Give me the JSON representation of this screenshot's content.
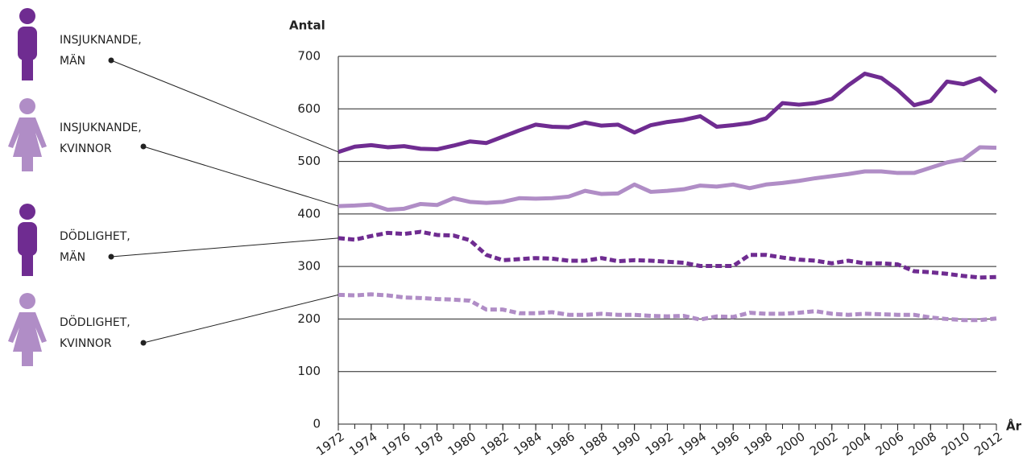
{
  "chart_data": {
    "type": "line",
    "y_label": "Antal",
    "x_label": "År",
    "x": [
      1972,
      1973,
      1974,
      1975,
      1976,
      1977,
      1978,
      1979,
      1980,
      1981,
      1982,
      1983,
      1984,
      1985,
      1986,
      1987,
      1988,
      1989,
      1990,
      1991,
      1992,
      1993,
      1994,
      1995,
      1996,
      1997,
      1998,
      1999,
      2000,
      2001,
      2002,
      2003,
      2004,
      2005,
      2006,
      2007,
      2008,
      2009,
      2010,
      2011,
      2012
    ],
    "xlim": [
      1972,
      2012
    ],
    "xticks": [
      1972,
      1974,
      1976,
      1978,
      1980,
      1982,
      1984,
      1986,
      1988,
      1990,
      1992,
      1994,
      1996,
      1998,
      2000,
      2002,
      2004,
      2006,
      2008,
      2010,
      2012
    ],
    "ylim": [
      0,
      700
    ],
    "yticks": [
      0,
      100,
      200,
      300,
      400,
      500,
      600,
      700
    ],
    "grid": true,
    "series": [
      {
        "name": [
          "INSJUKNANDE,",
          "MÄN"
        ],
        "color": "#6f2c91",
        "dashed": false,
        "values": [
          518,
          528,
          531,
          527,
          529,
          524,
          523,
          530,
          538,
          535,
          547,
          559,
          570,
          566,
          565,
          574,
          568,
          570,
          555,
          569,
          575,
          579,
          586,
          566,
          569,
          573,
          582,
          611,
          608,
          611,
          619,
          645,
          667,
          659,
          636,
          607,
          615,
          652,
          647,
          658,
          632
        ]
      },
      {
        "name": [
          "INSJUKNANDE,",
          "KVINNOR"
        ],
        "color": "#b08dc6",
        "dashed": false,
        "values": [
          415,
          416,
          418,
          408,
          410,
          419,
          417,
          430,
          423,
          421,
          423,
          430,
          429,
          430,
          433,
          444,
          438,
          439,
          456,
          442,
          444,
          447,
          454,
          452,
          456,
          449,
          456,
          459,
          463,
          468,
          472,
          476,
          481,
          481,
          478,
          478,
          488,
          498,
          504,
          527,
          526
        ]
      },
      {
        "name": [
          "DÖDLIGHET,",
          "MÄN"
        ],
        "color": "#6f2c91",
        "dashed": true,
        "values": [
          354,
          351,
          358,
          364,
          362,
          366,
          360,
          359,
          350,
          322,
          312,
          314,
          316,
          315,
          311,
          311,
          316,
          310,
          312,
          311,
          309,
          307,
          301,
          301,
          301,
          322,
          322,
          317,
          313,
          311,
          306,
          311,
          306,
          306,
          304,
          291,
          289,
          286,
          282,
          279,
          280
        ]
      },
      {
        "name": [
          "DÖDLIGHET,",
          "KVINNOR"
        ],
        "color": "#b08dc6",
        "dashed": true,
        "values": [
          246,
          245,
          247,
          245,
          241,
          240,
          238,
          237,
          235,
          218,
          218,
          211,
          211,
          213,
          208,
          208,
          210,
          208,
          208,
          206,
          205,
          206,
          199,
          205,
          204,
          212,
          210,
          210,
          212,
          215,
          210,
          208,
          210,
          209,
          208,
          208,
          203,
          200,
          198,
          198,
          201
        ]
      }
    ]
  }
}
